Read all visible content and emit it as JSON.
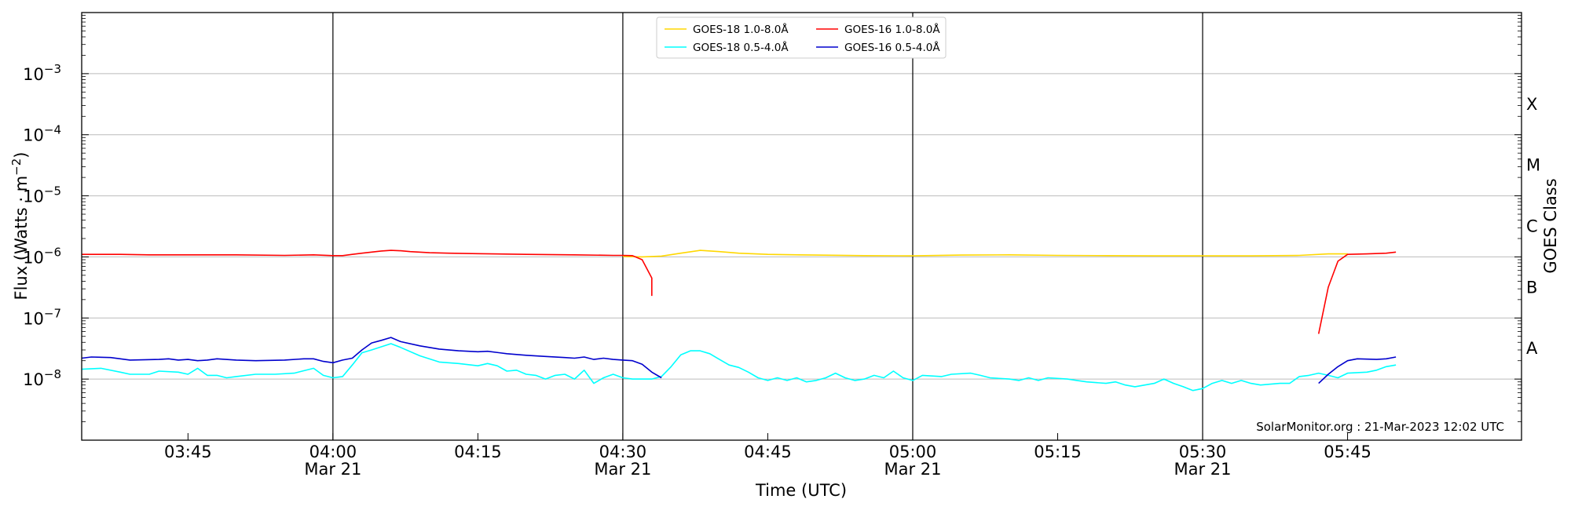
{
  "chart_data": {
    "type": "line",
    "title": "",
    "xlabel": "Time (UTC)",
    "ylabel": "Flux (Watts · m",
    "ylabel_sup": "−2",
    "ylabel_close": ")",
    "right_label": "GOES Class",
    "credit": "SolarMonitor.org : 21-Mar-2023 12:02 UTC",
    "y_scale": "log",
    "ylim": [
      1e-09,
      0.01
    ],
    "xlim": [
      "03:34",
      "06:03"
    ],
    "grid": "horizontal at decades",
    "legend_position": "top-center",
    "y_ticks": [
      {
        "value": 1e-08,
        "base": "10",
        "exp": "−8"
      },
      {
        "value": 1e-07,
        "base": "10",
        "exp": "−7"
      },
      {
        "value": 1e-06,
        "base": "10",
        "exp": "−6"
      },
      {
        "value": 1e-05,
        "base": "10",
        "exp": "−5"
      },
      {
        "value": 0.0001,
        "base": "10",
        "exp": "−4"
      },
      {
        "value": 0.001,
        "base": "10",
        "exp": "−3"
      }
    ],
    "x_ticks": [
      {
        "time": "03:45",
        "label": "03:45",
        "date": ""
      },
      {
        "time": "04:00",
        "label": "04:00",
        "date": "Mar 21"
      },
      {
        "time": "04:15",
        "label": "04:15",
        "date": ""
      },
      {
        "time": "04:30",
        "label": "04:30",
        "date": "Mar 21"
      },
      {
        "time": "04:45",
        "label": "04:45",
        "date": ""
      },
      {
        "time": "05:00",
        "label": "05:00",
        "date": "Mar 21"
      },
      {
        "time": "05:15",
        "label": "05:15",
        "date": ""
      },
      {
        "time": "05:30",
        "label": "05:30",
        "date": "Mar 21"
      },
      {
        "time": "05:45",
        "label": "05:45",
        "date": ""
      }
    ],
    "vertical_lines": [
      "04:00",
      "04:30",
      "05:00",
      "05:30"
    ],
    "goes_classes": [
      {
        "label": "A",
        "value": 3.16e-08
      },
      {
        "label": "B",
        "value": 3.16e-07
      },
      {
        "label": "C",
        "value": 3.16e-06
      },
      {
        "label": "M",
        "value": 3.16e-05
      },
      {
        "label": "X",
        "value": 0.000316
      }
    ],
    "series": [
      {
        "name": "GOES-18 1.0-8.0Å",
        "color": "#ffd700",
        "points": [
          [
            "04:30",
            1.02e-06
          ],
          [
            "04:32",
            1e-06
          ],
          [
            "04:34",
            1.03e-06
          ],
          [
            "04:36",
            1.15e-06
          ],
          [
            "04:38",
            1.28e-06
          ],
          [
            "04:40",
            1.22e-06
          ],
          [
            "04:42",
            1.15e-06
          ],
          [
            "04:45",
            1.1e-06
          ],
          [
            "04:50",
            1.07e-06
          ],
          [
            "04:55",
            1.05e-06
          ],
          [
            "05:00",
            1.04e-06
          ],
          [
            "05:05",
            1.07e-06
          ],
          [
            "05:10",
            1.08e-06
          ],
          [
            "05:15",
            1.06e-06
          ],
          [
            "05:20",
            1.05e-06
          ],
          [
            "05:25",
            1.04e-06
          ],
          [
            "05:30",
            1.04e-06
          ],
          [
            "05:35",
            1.04e-06
          ],
          [
            "05:40",
            1.06e-06
          ],
          [
            "05:43",
            1.12e-06
          ],
          [
            "05:45",
            1.12e-06
          ]
        ]
      },
      {
        "name": "GOES-18 0.5-4.0Å",
        "color": "#00ffff",
        "points": [
          [
            "03:34",
            1.45e-08
          ],
          [
            "03:36",
            1.5e-08
          ],
          [
            "03:38",
            1.3e-08
          ],
          [
            "03:39",
            1.2e-08
          ],
          [
            "03:41",
            1.2e-08
          ],
          [
            "03:42",
            1.35e-08
          ],
          [
            "03:44",
            1.3e-08
          ],
          [
            "03:45",
            1.2e-08
          ],
          [
            "03:46",
            1.5e-08
          ],
          [
            "03:47",
            1.15e-08
          ],
          [
            "03:48",
            1.15e-08
          ],
          [
            "03:49",
            1.05e-08
          ],
          [
            "03:50",
            1.1e-08
          ],
          [
            "03:52",
            1.2e-08
          ],
          [
            "03:54",
            1.2e-08
          ],
          [
            "03:56",
            1.25e-08
          ],
          [
            "03:58",
            1.5e-08
          ],
          [
            "03:59",
            1.15e-08
          ],
          [
            "04:00",
            1.05e-08
          ],
          [
            "04:01",
            1.1e-08
          ],
          [
            "04:02",
            1.7e-08
          ],
          [
            "04:03",
            2.7e-08
          ],
          [
            "04:04",
            3e-08
          ],
          [
            "04:06",
            3.8e-08
          ],
          [
            "04:07",
            3.3e-08
          ],
          [
            "04:09",
            2.4e-08
          ],
          [
            "04:11",
            1.9e-08
          ],
          [
            "04:13",
            1.8e-08
          ],
          [
            "04:15",
            1.65e-08
          ],
          [
            "04:16",
            1.8e-08
          ],
          [
            "04:17",
            1.65e-08
          ],
          [
            "04:18",
            1.35e-08
          ],
          [
            "04:19",
            1.4e-08
          ],
          [
            "04:20",
            1.2e-08
          ],
          [
            "04:21",
            1.15e-08
          ],
          [
            "04:22",
            1e-08
          ],
          [
            "04:23",
            1.15e-08
          ],
          [
            "04:24",
            1.2e-08
          ],
          [
            "04:25",
            1e-08
          ],
          [
            "04:26",
            1.4e-08
          ],
          [
            "04:27",
            8.5e-09
          ],
          [
            "04:28",
            1.05e-08
          ],
          [
            "04:29",
            1.2e-08
          ],
          [
            "04:30",
            1.05e-08
          ],
          [
            "04:31",
            1e-08
          ],
          [
            "04:33",
            1e-08
          ],
          [
            "04:34",
            1.1e-08
          ],
          [
            "04:35",
            1.6e-08
          ],
          [
            "04:36",
            2.5e-08
          ],
          [
            "04:37",
            2.9e-08
          ],
          [
            "04:38",
            2.9e-08
          ],
          [
            "04:39",
            2.6e-08
          ],
          [
            "04:40",
            2.1e-08
          ],
          [
            "04:41",
            1.7e-08
          ],
          [
            "04:42",
            1.55e-08
          ],
          [
            "04:43",
            1.3e-08
          ],
          [
            "04:44",
            1.05e-08
          ],
          [
            "04:45",
            9.5e-09
          ],
          [
            "04:46",
            1.05e-08
          ],
          [
            "04:47",
            9.5e-09
          ],
          [
            "04:48",
            1.05e-08
          ],
          [
            "04:49",
            9e-09
          ],
          [
            "04:50",
            9.5e-09
          ],
          [
            "04:51",
            1.05e-08
          ],
          [
            "04:52",
            1.25e-08
          ],
          [
            "04:53",
            1.05e-08
          ],
          [
            "04:54",
            9.5e-09
          ],
          [
            "04:55",
            1e-08
          ],
          [
            "04:56",
            1.15e-08
          ],
          [
            "04:57",
            1.05e-08
          ],
          [
            "04:58",
            1.35e-08
          ],
          [
            "04:59",
            1.05e-08
          ],
          [
            "05:00",
            9.5e-09
          ],
          [
            "05:01",
            1.15e-08
          ],
          [
            "05:03",
            1.1e-08
          ],
          [
            "05:04",
            1.2e-08
          ],
          [
            "05:06",
            1.25e-08
          ],
          [
            "05:07",
            1.15e-08
          ],
          [
            "05:08",
            1.05e-08
          ],
          [
            "05:10",
            1e-08
          ],
          [
            "05:11",
            9.5e-09
          ],
          [
            "05:12",
            1.05e-08
          ],
          [
            "05:13",
            9.5e-09
          ],
          [
            "05:14",
            1.05e-08
          ],
          [
            "05:16",
            1e-08
          ],
          [
            "05:17",
            9.5e-09
          ],
          [
            "05:18",
            9e-09
          ],
          [
            "05:20",
            8.5e-09
          ],
          [
            "05:21",
            9e-09
          ],
          [
            "05:22",
            8e-09
          ],
          [
            "05:23",
            7.5e-09
          ],
          [
            "05:25",
            8.5e-09
          ],
          [
            "05:26",
            1e-08
          ],
          [
            "05:27",
            8.5e-09
          ],
          [
            "05:28",
            7.5e-09
          ],
          [
            "05:29",
            6.5e-09
          ],
          [
            "05:30",
            7e-09
          ],
          [
            "05:31",
            8.5e-09
          ],
          [
            "05:32",
            9.5e-09
          ],
          [
            "05:33",
            8.5e-09
          ],
          [
            "05:34",
            9.5e-09
          ],
          [
            "05:35",
            8.5e-09
          ],
          [
            "05:36",
            8e-09
          ],
          [
            "05:38",
            8.5e-09
          ],
          [
            "05:39",
            8.5e-09
          ],
          [
            "05:40",
            1.1e-08
          ],
          [
            "05:41",
            1.15e-08
          ],
          [
            "05:42",
            1.25e-08
          ],
          [
            "05:43",
            1.15e-08
          ],
          [
            "05:44",
            1.05e-08
          ],
          [
            "05:45",
            1.25e-08
          ],
          [
            "05:47",
            1.3e-08
          ],
          [
            "05:48",
            1.4e-08
          ],
          [
            "05:49",
            1.6e-08
          ],
          [
            "05:50",
            1.7e-08
          ]
        ]
      },
      {
        "name": "GOES-16 1.0-8.0Å",
        "color": "#ff0000",
        "segments": [
          [
            [
              "03:34",
              1.1e-06
            ],
            [
              "03:38",
              1.1e-06
            ],
            [
              "03:41",
              1.08e-06
            ],
            [
              "03:45",
              1.08e-06
            ],
            [
              "03:50",
              1.08e-06
            ],
            [
              "03:55",
              1.06e-06
            ],
            [
              "03:58",
              1.08e-06
            ],
            [
              "04:00",
              1.05e-06
            ],
            [
              "04:01",
              1.05e-06
            ],
            [
              "04:02",
              1.1e-06
            ],
            [
              "04:03",
              1.15e-06
            ],
            [
              "04:04",
              1.2e-06
            ],
            [
              "04:05",
              1.25e-06
            ],
            [
              "04:06",
              1.28e-06
            ],
            [
              "04:07",
              1.26e-06
            ],
            [
              "04:08",
              1.22e-06
            ],
            [
              "04:10",
              1.17e-06
            ],
            [
              "04:12",
              1.15e-06
            ],
            [
              "04:15",
              1.13e-06
            ],
            [
              "04:20",
              1.1e-06
            ],
            [
              "04:25",
              1.08e-06
            ],
            [
              "04:29",
              1.06e-06
            ],
            [
              "04:30",
              1.06e-06
            ],
            [
              "04:31",
              1.05e-06
            ],
            [
              "04:32",
              9e-07
            ],
            [
              "04:33",
              4.5e-07
            ],
            [
              "04:33",
              2.3e-07
            ]
          ],
          [
            [
              "05:42",
              5.5e-08
            ],
            [
              "05:43",
              3.2e-07
            ],
            [
              "05:44",
              8.5e-07
            ],
            [
              "05:45",
              1.1e-06
            ],
            [
              "05:47",
              1.12e-06
            ],
            [
              "05:49",
              1.15e-06
            ],
            [
              "05:50",
              1.2e-06
            ]
          ]
        ]
      },
      {
        "name": "GOES-16 0.5-4.0Å",
        "color": "#0000cd",
        "segments": [
          [
            [
              "03:34",
              2.2e-08
            ],
            [
              "03:35",
              2.3e-08
            ],
            [
              "03:37",
              2.25e-08
            ],
            [
              "03:39",
              2.05e-08
            ],
            [
              "03:42",
              2.1e-08
            ],
            [
              "03:43",
              2.15e-08
            ],
            [
              "03:44",
              2.05e-08
            ],
            [
              "03:45",
              2.1e-08
            ],
            [
              "03:46",
              2e-08
            ],
            [
              "03:47",
              2.05e-08
            ],
            [
              "03:48",
              2.15e-08
            ],
            [
              "03:50",
              2.05e-08
            ],
            [
              "03:52",
              2e-08
            ],
            [
              "03:55",
              2.05e-08
            ],
            [
              "03:57",
              2.15e-08
            ],
            [
              "03:58",
              2.15e-08
            ],
            [
              "03:59",
              1.95e-08
            ],
            [
              "04:00",
              1.85e-08
            ],
            [
              "04:01",
              2.05e-08
            ],
            [
              "04:02",
              2.2e-08
            ],
            [
              "04:03",
              3e-08
            ],
            [
              "04:04",
              3.9e-08
            ],
            [
              "04:05",
              4.3e-08
            ],
            [
              "04:06",
              4.8e-08
            ],
            [
              "04:07",
              4.1e-08
            ],
            [
              "04:09",
              3.5e-08
            ],
            [
              "04:11",
              3.1e-08
            ],
            [
              "04:13",
              2.9e-08
            ],
            [
              "04:15",
              2.8e-08
            ],
            [
              "04:16",
              2.85e-08
            ],
            [
              "04:18",
              2.6e-08
            ],
            [
              "04:20",
              2.45e-08
            ],
            [
              "04:22",
              2.35e-08
            ],
            [
              "04:24",
              2.25e-08
            ],
            [
              "04:25",
              2.2e-08
            ],
            [
              "04:26",
              2.3e-08
            ],
            [
              "04:27",
              2.1e-08
            ],
            [
              "04:28",
              2.2e-08
            ],
            [
              "04:29",
              2.1e-08
            ],
            [
              "04:30",
              2.05e-08
            ],
            [
              "04:31",
              2e-08
            ],
            [
              "04:32",
              1.75e-08
            ],
            [
              "04:33",
              1.3e-08
            ],
            [
              "04:34",
              1.05e-08
            ]
          ],
          [
            [
              "05:42",
              8.5e-09
            ],
            [
              "05:43",
              1.2e-08
            ],
            [
              "05:44",
              1.6e-08
            ],
            [
              "05:45",
              2e-08
            ],
            [
              "05:46",
              2.15e-08
            ],
            [
              "05:48",
              2.1e-08
            ],
            [
              "05:49",
              2.15e-08
            ],
            [
              "05:50",
              2.3e-08
            ]
          ]
        ]
      }
    ]
  }
}
